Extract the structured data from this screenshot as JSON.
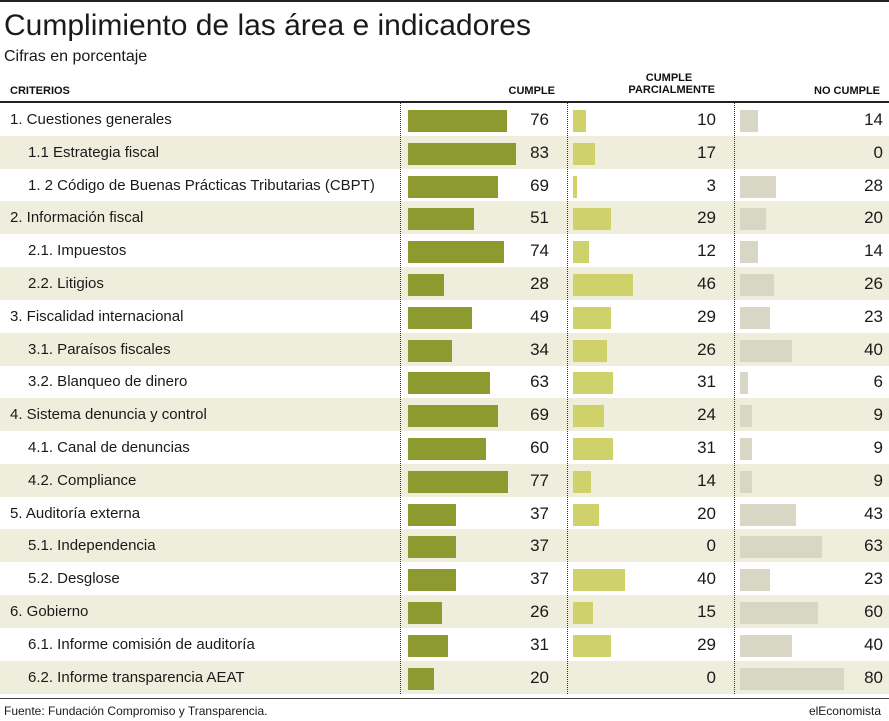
{
  "header": {
    "title": "Cumplimiento de las área e indicadores",
    "subtitle": "Cifras en porcentaje"
  },
  "columns": {
    "criterios": "CRITERIOS",
    "cumple": "CUMPLE",
    "parcial_line1": "CUMPLE",
    "parcial_line2": "PARCIALMENTE",
    "no_cumple": "NO CUMPLE"
  },
  "colors": {
    "cumple": "#8d9a2f",
    "parcial": "#cfd26a",
    "no_cumple": "#d8d7c6",
    "row_shade": "#efeedd"
  },
  "chart_data": {
    "type": "bar",
    "title": "Cumplimiento de las área e indicadores",
    "subtitle": "Cifras en porcentaje",
    "categories": [
      "1. Cuestiones generales",
      "1.1 Estrategia fiscal",
      "1. 2 Código de Buenas Prácticas Tributarias (CBPT)",
      "2. Información fiscal",
      "2.1. Impuestos",
      "2.2. Litigios",
      "3. Fiscalidad internacional",
      "3.1. Paraísos fiscales",
      "3.2. Blanqueo de dinero",
      "4. Sistema denuncia y control",
      "4.1. Canal de denuncias",
      "4.2. Compliance",
      "5. Auditoría externa",
      "5.1. Independencia",
      "5.2. Desglose",
      "6. Gobierno",
      "6.1. Informe comisión de auditoría",
      "6.2. Informe transparencia AEAT"
    ],
    "series": [
      {
        "name": "CUMPLE",
        "values": [
          76,
          83,
          69,
          51,
          74,
          28,
          49,
          34,
          63,
          69,
          60,
          77,
          37,
          37,
          37,
          26,
          31,
          20
        ]
      },
      {
        "name": "CUMPLE PARCIALMENTE",
        "values": [
          10,
          17,
          3,
          29,
          12,
          46,
          29,
          26,
          31,
          24,
          31,
          14,
          20,
          0,
          40,
          15,
          29,
          0
        ]
      },
      {
        "name": "NO CUMPLE",
        "values": [
          14,
          0,
          28,
          20,
          14,
          26,
          23,
          40,
          6,
          9,
          9,
          9,
          43,
          63,
          23,
          60,
          40,
          80
        ]
      }
    ],
    "ylim": [
      0,
      100
    ]
  },
  "footer": {
    "source": "Fuente: Fundación Compromiso y Transparencia.",
    "brand": "elEconomista"
  }
}
